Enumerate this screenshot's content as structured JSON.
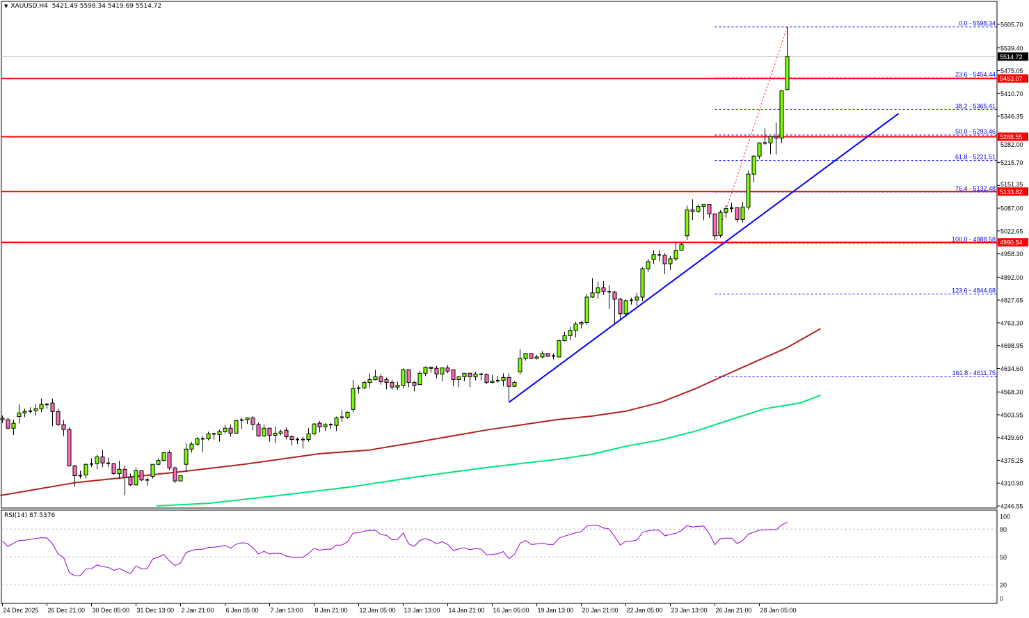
{
  "header": {
    "symbol": "XAUUSD,H4",
    "open": "5421.49",
    "high": "5598.34",
    "low": "5419.69",
    "close": "5514.72",
    "menu_icon": "triangle-down-icon"
  },
  "colors": {
    "bull": "#7cfc00",
    "bear": "#ff69b4",
    "level_line": "#ff0000",
    "fib": "#0000ff",
    "trendline": "#0000ff",
    "ma_slow": "#b22222",
    "ma_fast": "#00e676",
    "rsi": "#9400d3"
  },
  "chart_data": {
    "type": "candlestick",
    "price_axis": {
      "range": [
        4246.55,
        5605.7
      ],
      "ticks": [
        "5605.70",
        "5539.40",
        "5475.05",
        "5410.70",
        "5346.35",
        "5282.00",
        "5215.70",
        "5151.35",
        "5087.00",
        "5022.65",
        "4958.30",
        "4892.00",
        "4827.65",
        "4763.30",
        "4698.95",
        "4634.60",
        "4568.30",
        "4503.95",
        "4439.60",
        "4375.25",
        "4310.90",
        "4246.55"
      ]
    },
    "time_axis": {
      "ticks": [
        {
          "bar": 0,
          "label": "24 Dec 2025"
        },
        {
          "bar": 8,
          "label": "26 Dec 21:00"
        },
        {
          "bar": 16,
          "label": "30 Dec 05:00"
        },
        {
          "bar": 24,
          "label": "31 Dec 13:00"
        },
        {
          "bar": 32,
          "label": "2 Jan 21:00"
        },
        {
          "bar": 40,
          "label": "6 Jan 05:00"
        },
        {
          "bar": 48,
          "label": "7 Jan 13:00"
        },
        {
          "bar": 56,
          "label": "8 Jan 21:00"
        },
        {
          "bar": 64,
          "label": "12 Jan 05:00"
        },
        {
          "bar": 72,
          "label": "13 Jan 13:00"
        },
        {
          "bar": 80,
          "label": "14 Jan 21:00"
        },
        {
          "bar": 88,
          "label": "16 Jan 05:00"
        },
        {
          "bar": 96,
          "label": "19 Jan 13:00"
        },
        {
          "bar": 104,
          "label": "20 Jan 21:00"
        },
        {
          "bar": 112,
          "label": "22 Jan 05:00"
        },
        {
          "bar": 120,
          "label": "23 Jan 13:00"
        },
        {
          "bar": 128,
          "label": "26 Jan 21:00"
        },
        {
          "bar": 136,
          "label": "28 Jan 05:00"
        }
      ]
    },
    "ohlc_order": [
      "open",
      "high",
      "low",
      "close"
    ],
    "ohlc": [
      [
        4494,
        4502,
        4480,
        4490
      ],
      [
        4490,
        4497,
        4462,
        4466
      ],
      [
        4466,
        4490,
        4447,
        4480
      ],
      [
        4499,
        4533,
        4479,
        4509
      ],
      [
        4509,
        4521,
        4497,
        4513
      ],
      [
        4514,
        4525,
        4507,
        4514
      ],
      [
        4515,
        4534,
        4502,
        4521
      ],
      [
        4521,
        4550,
        4511,
        4533
      ],
      [
        4533,
        4537,
        4521,
        4533
      ],
      [
        4537,
        4550,
        4472,
        4513
      ],
      [
        4513,
        4521,
        4472,
        4476
      ],
      [
        4476,
        4489,
        4444,
        4462
      ],
      [
        4462,
        4468,
        4358,
        4360
      ],
      [
        4360,
        4362,
        4301,
        4332
      ],
      [
        4332,
        4346,
        4324,
        4332
      ],
      [
        4334,
        4366,
        4324,
        4364
      ],
      [
        4365,
        4381,
        4356,
        4365
      ],
      [
        4366,
        4391,
        4350,
        4385
      ],
      [
        4385,
        4405,
        4356,
        4368
      ],
      [
        4367,
        4383,
        4356,
        4367
      ],
      [
        4366,
        4368,
        4334,
        4338
      ],
      [
        4338,
        4374,
        4324,
        4350
      ],
      [
        4350,
        4360,
        4277,
        4326
      ],
      [
        4328,
        4338,
        4303,
        4306
      ],
      [
        4306,
        4354,
        4304,
        4346
      ],
      [
        4346,
        4346,
        4317,
        4320
      ],
      [
        4320,
        4326,
        4304,
        4320
      ],
      [
        4330,
        4364,
        4324,
        4364
      ],
      [
        4364,
        4381,
        4362,
        4375
      ],
      [
        4375,
        4399,
        4373,
        4397
      ],
      [
        4397,
        4403,
        4348,
        4354
      ],
      [
        4354,
        4358,
        4311,
        4317
      ],
      [
        4317,
        4332,
        4317,
        4332
      ],
      [
        4364,
        4423,
        4342,
        4407
      ],
      [
        4407,
        4427,
        4397,
        4421
      ],
      [
        4421,
        4440,
        4417,
        4436
      ],
      [
        4436,
        4444,
        4398,
        4436
      ],
      [
        4436,
        4456,
        4432,
        4450
      ],
      [
        4450,
        4450,
        4434,
        4450
      ],
      [
        4448,
        4462,
        4428,
        4456
      ],
      [
        4456,
        4476,
        4450,
        4466
      ],
      [
        4466,
        4476,
        4442,
        4452
      ],
      [
        4452,
        4490,
        4450,
        4488
      ],
      [
        4489,
        4495,
        4464,
        4489
      ],
      [
        4490,
        4497,
        4478,
        4495
      ],
      [
        4495,
        4501,
        4460,
        4476
      ],
      [
        4476,
        4482,
        4442,
        4444
      ],
      [
        4444,
        4476,
        4442,
        4466
      ],
      [
        4466,
        4466,
        4428,
        4446
      ],
      [
        4446,
        4470,
        4424,
        4452
      ],
      [
        4452,
        4462,
        4446,
        4456
      ],
      [
        4460,
        4468,
        4434,
        4442
      ],
      [
        4442,
        4446,
        4417,
        4434
      ],
      [
        4434,
        4440,
        4421,
        4434
      ],
      [
        4434,
        4442,
        4409,
        4434
      ],
      [
        4434,
        4466,
        4428,
        4450
      ],
      [
        4450,
        4480,
        4446,
        4478
      ],
      [
        4480,
        4486,
        4454,
        4470
      ],
      [
        4470,
        4480,
        4458,
        4476
      ],
      [
        4476,
        4480,
        4464,
        4476
      ],
      [
        4474,
        4499,
        4458,
        4495
      ],
      [
        4497,
        4517,
        4484,
        4497
      ],
      [
        4497,
        4513,
        4493,
        4511
      ],
      [
        4519,
        4602,
        4511,
        4578
      ],
      [
        4579,
        4586,
        4564,
        4579
      ],
      [
        4580,
        4599,
        4576,
        4595
      ],
      [
        4595,
        4621,
        4580,
        4603
      ],
      [
        4603,
        4631,
        4601,
        4611
      ],
      [
        4611,
        4619,
        4589,
        4597
      ],
      [
        4603,
        4609,
        4576,
        4595
      ],
      [
        4595,
        4603,
        4574,
        4582
      ],
      [
        4582,
        4597,
        4574,
        4587
      ],
      [
        4587,
        4635,
        4578,
        4631
      ],
      [
        4631,
        4631,
        4582,
        4595
      ],
      [
        4595,
        4599,
        4570,
        4587
      ],
      [
        4589,
        4627,
        4589,
        4621
      ],
      [
        4621,
        4640,
        4613,
        4638
      ],
      [
        4638,
        4640,
        4623,
        4635
      ],
      [
        4635,
        4642,
        4607,
        4619
      ],
      [
        4619,
        4638,
        4599,
        4636
      ],
      [
        4636,
        4644,
        4621,
        4627
      ],
      [
        4631,
        4631,
        4584,
        4603
      ],
      [
        4603,
        4613,
        4582,
        4611
      ],
      [
        4611,
        4621,
        4599,
        4621
      ],
      [
        4621,
        4623,
        4582,
        4611
      ],
      [
        4611,
        4625,
        4601,
        4619
      ],
      [
        4618,
        4623,
        4601,
        4618
      ],
      [
        4617,
        4621,
        4591,
        4595
      ],
      [
        4595,
        4617,
        4593,
        4599
      ],
      [
        4600,
        4613,
        4595,
        4600
      ],
      [
        4601,
        4621,
        4584,
        4609
      ],
      [
        4609,
        4621,
        4539,
        4584
      ],
      [
        4584,
        4599,
        4582,
        4595
      ],
      [
        4625,
        4690,
        4617,
        4663
      ],
      [
        4663,
        4677,
        4657,
        4677
      ],
      [
        4677,
        4677,
        4661,
        4663
      ],
      [
        4663,
        4673,
        4660,
        4667
      ],
      [
        4667,
        4683,
        4663,
        4677
      ],
      [
        4677,
        4677,
        4667,
        4669
      ],
      [
        4670,
        4677,
        4660,
        4670
      ],
      [
        4667,
        4717,
        4665,
        4713
      ],
      [
        4713,
        4738,
        4711,
        4727
      ],
      [
        4727,
        4752,
        4715,
        4742
      ],
      [
        4742,
        4766,
        4722,
        4760
      ],
      [
        4760,
        4768,
        4748,
        4764
      ],
      [
        4764,
        4844,
        4758,
        4836
      ],
      [
        4836,
        4889,
        4834,
        4848
      ],
      [
        4848,
        4880,
        4832,
        4862
      ],
      [
        4862,
        4881,
        4842,
        4852
      ],
      [
        4851,
        4870,
        4803,
        4851
      ],
      [
        4850,
        4854,
        4762,
        4830
      ],
      [
        4830,
        4834,
        4773,
        4789
      ],
      [
        4789,
        4830,
        4785,
        4826
      ],
      [
        4827,
        4834,
        4815,
        4827
      ],
      [
        4828,
        4848,
        4811,
        4836
      ],
      [
        4836,
        4920,
        4825,
        4916
      ],
      [
        4916,
        4944,
        4906,
        4936
      ],
      [
        4942,
        4968,
        4930,
        4956
      ],
      [
        4955,
        4968,
        4938,
        4955
      ],
      [
        4954,
        4960,
        4901,
        4930
      ],
      [
        4930,
        4952,
        4913,
        4944
      ],
      [
        4944,
        4991,
        4938,
        4968
      ],
      [
        4968,
        4989,
        4968,
        4985
      ],
      [
        5009,
        5094,
        4997,
        5082
      ],
      [
        5082,
        5112,
        5053,
        5078
      ],
      [
        5078,
        5098,
        5074,
        5092
      ],
      [
        5092,
        5098,
        5053,
        5098
      ],
      [
        5098,
        5098,
        5059,
        5071
      ],
      [
        5071,
        5071,
        4997,
        5009
      ],
      [
        5010,
        5081,
        5004,
        5075
      ],
      [
        5075,
        5096,
        5059,
        5086
      ],
      [
        5087,
        5102,
        5075,
        5087
      ],
      [
        5088,
        5088,
        5047,
        5055
      ],
      [
        5055,
        5104,
        5047,
        5090
      ],
      [
        5090,
        5193,
        5082,
        5183
      ],
      [
        5183,
        5236,
        5159,
        5234
      ],
      [
        5234,
        5273,
        5226,
        5271
      ],
      [
        5271,
        5312,
        5265,
        5271
      ],
      [
        5271,
        5289,
        5240,
        5289
      ],
      [
        5289,
        5328,
        5238,
        5285
      ],
      [
        5285,
        5420,
        5271,
        5418
      ],
      [
        5421.49,
        5598.34,
        5419.69,
        5514.72
      ]
    ],
    "current_price": "5514.72",
    "moving_averages": [
      {
        "color": "#b22222",
        "points": [
          [
            -0.4,
            4276
          ],
          [
            13.3,
            4313
          ],
          [
            24.6,
            4331
          ],
          [
            32,
            4343
          ],
          [
            43.3,
            4364
          ],
          [
            57,
            4394
          ],
          [
            65.8,
            4404
          ],
          [
            74.6,
            4427
          ],
          [
            87,
            4461
          ],
          [
            99.6,
            4490
          ],
          [
            105.8,
            4500
          ],
          [
            112,
            4514
          ],
          [
            118.3,
            4539
          ],
          [
            124.6,
            4578
          ],
          [
            129.6,
            4614
          ],
          [
            134.6,
            4649
          ],
          [
            140.8,
            4692
          ],
          [
            147,
            4747
          ]
        ]
      },
      {
        "color": "#00e676",
        "points": [
          [
            27.7,
            4246.55
          ],
          [
            37,
            4254
          ],
          [
            49.6,
            4276
          ],
          [
            62,
            4299
          ],
          [
            74.6,
            4329
          ],
          [
            87,
            4355
          ],
          [
            99.6,
            4378
          ],
          [
            105.8,
            4392
          ],
          [
            112,
            4415
          ],
          [
            118.3,
            4433
          ],
          [
            124.6,
            4458
          ],
          [
            130.8,
            4490
          ],
          [
            137,
            4521
          ],
          [
            143.3,
            4537
          ],
          [
            147,
            4559
          ]
        ]
      }
    ],
    "trendline": {
      "from": [
        91,
        4539
      ],
      "to": [
        161,
        5354
      ]
    },
    "horizontal_levels": [
      {
        "price": 5453.07,
        "label": "5453.07"
      },
      {
        "price": 5288.55,
        "label": "5288.55"
      },
      {
        "price": 5133.82,
        "label": "5133.82"
      },
      {
        "price": 4990.54,
        "label": "4990.54"
      }
    ],
    "fibonacci": {
      "from": [
        128,
        4988.58
      ],
      "to": [
        141,
        5598.34
      ],
      "levels": [
        {
          "ratio": "0.0",
          "price": "5598.34"
        },
        {
          "ratio": "23.6",
          "price": "5454.44"
        },
        {
          "ratio": "38.2",
          "price": "5365.41"
        },
        {
          "ratio": "50.0",
          "price": "5293.46"
        },
        {
          "ratio": "61.8",
          "price": "5221.51"
        },
        {
          "ratio": "76.4",
          "price": "5132.48"
        },
        {
          "ratio": "100.0",
          "price": "4988.58"
        },
        {
          "ratio": "123.6",
          "price": "4844.68"
        },
        {
          "ratio": "161.8",
          "price": "4611.75"
        }
      ]
    },
    "rsi": {
      "name": "RSI(14)",
      "value": "87.5376",
      "range": [
        0,
        100
      ],
      "levels": [
        80,
        50,
        20
      ],
      "ticks": [
        "100",
        "80",
        "50",
        "20",
        "0"
      ],
      "values": [
        67.3,
        61.3,
        64.8,
        67.8,
        68,
        69,
        70,
        70.8,
        70.5,
        64,
        53.3,
        49.3,
        33.3,
        29.8,
        29.8,
        37,
        37.3,
        41.5,
        39.5,
        38.8,
        35.5,
        37.5,
        34.8,
        32,
        40.3,
        37.3,
        37.3,
        47.8,
        49.8,
        52.8,
        45.8,
        40.8,
        43.5,
        54.8,
        57,
        58.3,
        58.3,
        60.3,
        60.5,
        61.3,
        62.5,
        59.5,
        63.8,
        65.3,
        64.8,
        59.8,
        53.3,
        56,
        53.3,
        54,
        53.8,
        51,
        49.8,
        49.5,
        49.8,
        53.8,
        59.3,
        57.3,
        58.3,
        58.3,
        62.8,
        62.8,
        66.3,
        75.8,
        76,
        77.8,
        78.5,
        78.8,
        74,
        73.3,
        68.5,
        69,
        75.8,
        64,
        61.5,
        67.8,
        69.8,
        67.8,
        64,
        66.5,
        63.5,
        57,
        58.8,
        60,
        57.8,
        59,
        58.5,
        52.3,
        52.8,
        53.5,
        55.8,
        48.3,
        52.8,
        64.8,
        67.8,
        63.5,
        64,
        65,
        63.5,
        63.5,
        70.3,
        72.5,
        74.3,
        76,
        77.3,
        83.3,
        84.3,
        83.8,
        81.3,
        80.3,
        72,
        62.8,
        67,
        67,
        68.3,
        76.5,
        78.3,
        79,
        78.8,
        72.8,
        74.3,
        75.5,
        78.5,
        83.8,
        82.3,
        83,
        83.3,
        75.3,
        63.3,
        69.8,
        70.3,
        70.3,
        64.5,
        67.8,
        74.5,
        76.8,
        79,
        79,
        79.5,
        79.3,
        84.5,
        87.5376
      ]
    }
  }
}
